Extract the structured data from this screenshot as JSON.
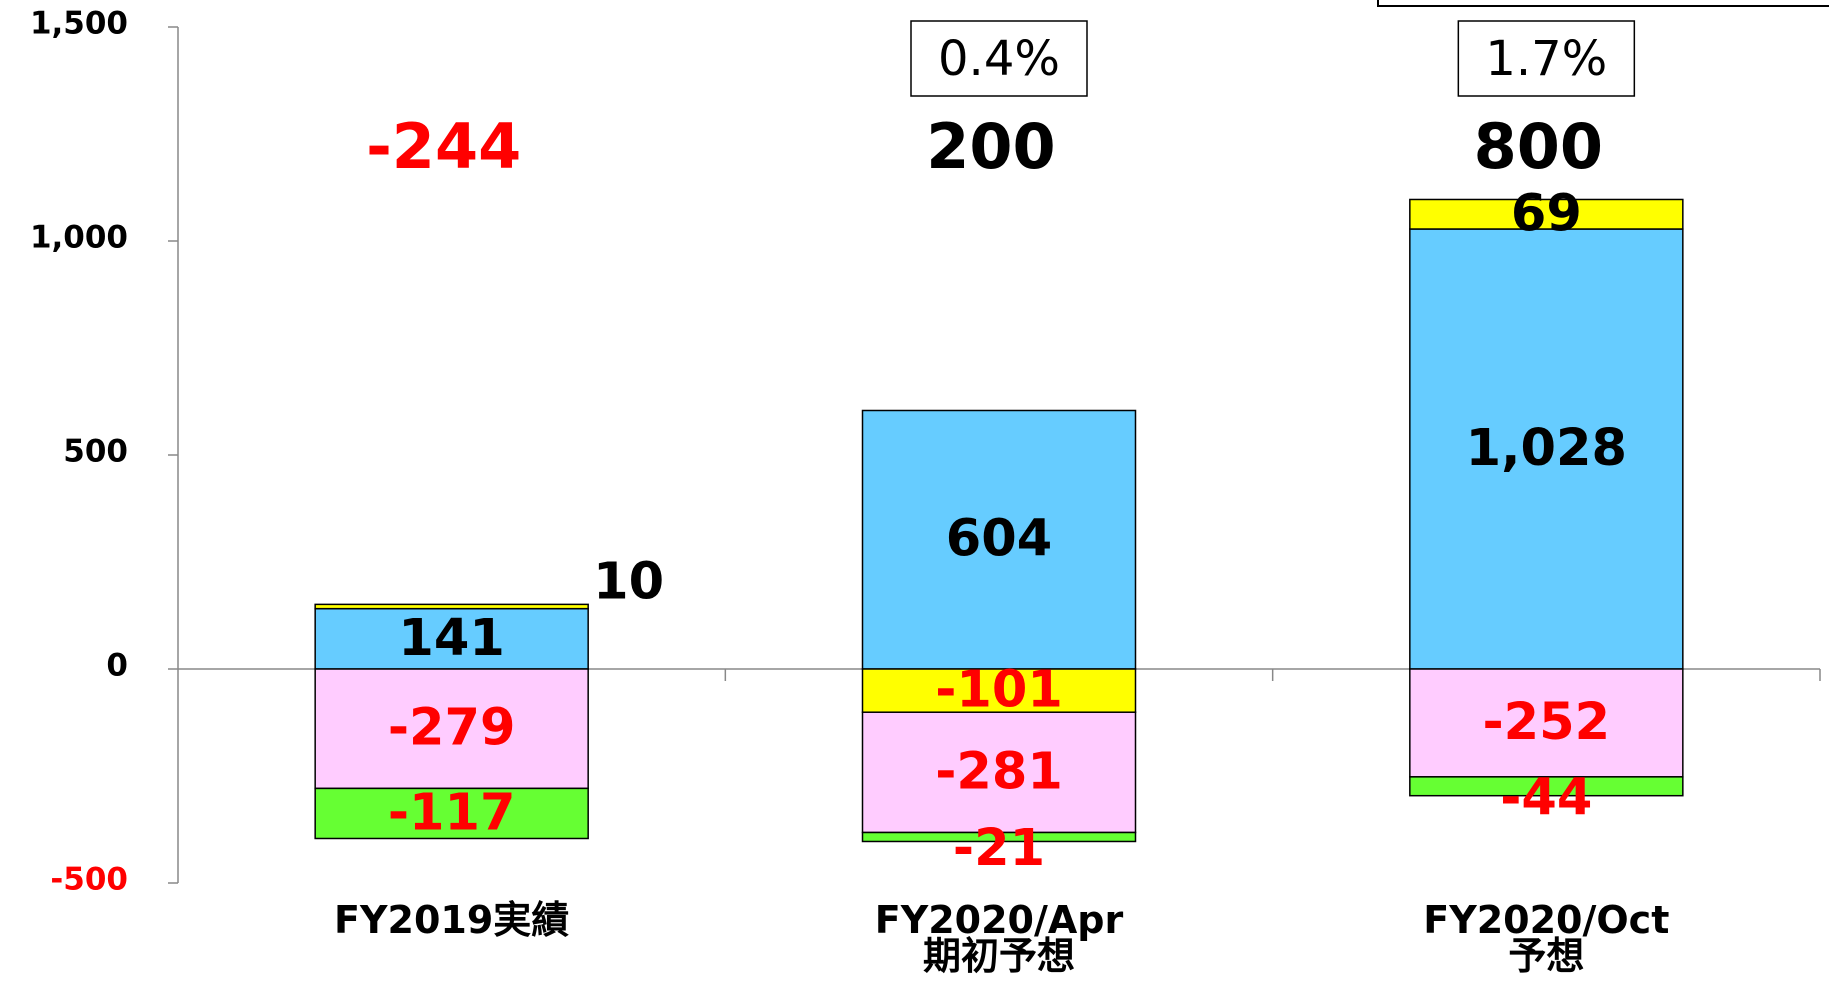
{
  "chart_data": {
    "type": "stacked_bar",
    "categories": [
      "FY2019実績",
      "FY2020/Apr\n期初予想",
      "FY2020/Oct\n予想"
    ],
    "series": [
      {
        "color": "#66ccff",
        "values": [
          141,
          604,
          1028
        ],
        "value_labels": [
          "141",
          "604",
          "1,028"
        ]
      },
      {
        "color": "#ffff00",
        "values": [
          10,
          -101,
          69
        ]
      },
      {
        "color": "#ffccff",
        "values": [
          -279,
          -281,
          -252
        ]
      },
      {
        "color": "#66ff33",
        "values": [
          -117,
          -21,
          -44
        ]
      }
    ],
    "totals": [
      -244,
      200,
      800
    ],
    "annotations": [
      null,
      "0.4%",
      "1.7%"
    ],
    "ylim": [
      -500,
      1500
    ],
    "yticks": [
      -500,
      0,
      500,
      {
        "value": 1000,
        "label": "1,000"
      },
      {
        "value": 1500,
        "label": "1,500"
      }
    ]
  }
}
